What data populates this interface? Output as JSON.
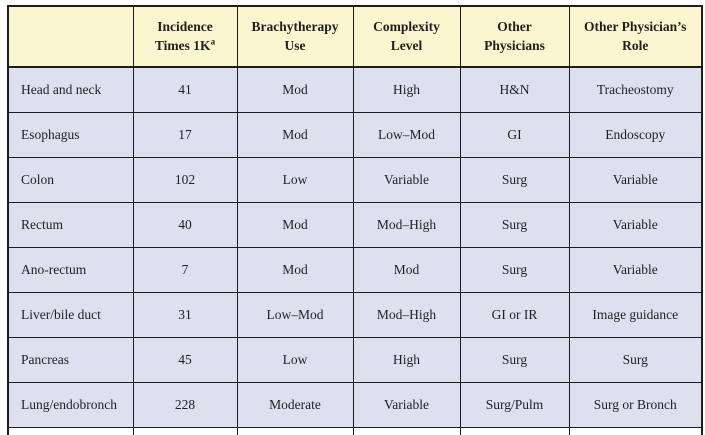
{
  "table": {
    "columns": [
      {
        "label": "",
        "sup": ""
      },
      {
        "label": "Incidence\nTimes 1K",
        "sup": "a"
      },
      {
        "label": "Brachytherapy\nUse",
        "sup": ""
      },
      {
        "label": "Complexity\nLevel",
        "sup": ""
      },
      {
        "label": "Other\nPhysicians",
        "sup": ""
      },
      {
        "label": "Other Physician’s\nRole",
        "sup": ""
      }
    ],
    "column_keys": [
      "site",
      "incidence-times-1k",
      "brachytherapy-use",
      "complexity-level",
      "other-physicians",
      "other-physicians-role"
    ],
    "rows": [
      [
        "Head and neck",
        "41",
        "Mod",
        "High",
        "H&N",
        "Tracheostomy"
      ],
      [
        "Esophagus",
        "17",
        "Mod",
        "Low–Mod",
        "GI",
        "Endoscopy"
      ],
      [
        "Colon",
        "102",
        "Low",
        "Variable",
        "Surg",
        "Variable"
      ],
      [
        "Rectum",
        "40",
        "Mod",
        "Mod–High",
        "Surg",
        "Variable"
      ],
      [
        "Ano-rectum",
        "7",
        "Mod",
        "Mod",
        "Surg",
        "Variable"
      ],
      [
        "Liver/bile duct",
        "31",
        "Low–Mod",
        "Mod–High",
        "GI or IR",
        "Image guidance"
      ],
      [
        "Pancreas",
        "45",
        "Low",
        "High",
        "Surg",
        "Surg"
      ],
      [
        "Lung/endobronch",
        "228",
        "Moderate",
        "Variable",
        "Surg/Pulm",
        "Surg or Bronch"
      ]
    ],
    "colors": {
      "header_bg": "#FBF6CF",
      "row_bg": "#DDE1EF",
      "border": "#1C1C1C",
      "text": "#1F1F1F"
    }
  }
}
